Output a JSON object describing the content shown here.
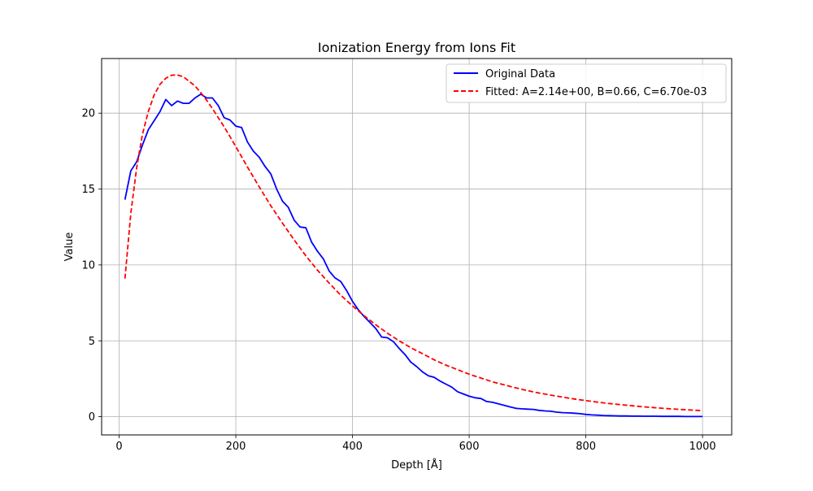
{
  "chart_data": {
    "type": "line",
    "title": "Ionization Energy from Ions Fit",
    "xlabel": "Depth [Å]",
    "ylabel": "Value",
    "xlim": [
      -30,
      1050
    ],
    "ylim": [
      -1.2,
      23.6
    ],
    "xticks": [
      0,
      200,
      400,
      600,
      800,
      1000
    ],
    "yticks": [
      0,
      5,
      10,
      15,
      20
    ],
    "grid": true,
    "legend_position": "top-right",
    "series": [
      {
        "name": "Original Data",
        "color": "#0000ff",
        "style": "solid",
        "x": [
          10,
          20,
          30,
          40,
          50,
          60,
          70,
          80,
          90,
          100,
          110,
          120,
          130,
          140,
          150,
          160,
          170,
          180,
          190,
          200,
          210,
          220,
          230,
          240,
          250,
          260,
          270,
          280,
          290,
          300,
          310,
          320,
          330,
          340,
          350,
          360,
          370,
          380,
          390,
          400,
          410,
          420,
          430,
          440,
          450,
          460,
          470,
          480,
          490,
          500,
          510,
          520,
          530,
          540,
          550,
          560,
          570,
          580,
          590,
          600,
          610,
          620,
          630,
          640,
          650,
          660,
          670,
          680,
          690,
          700,
          710,
          720,
          730,
          740,
          750,
          760,
          770,
          780,
          790,
          800,
          810,
          820,
          830,
          840,
          850,
          860,
          870,
          880,
          890,
          900,
          910,
          920,
          930,
          940,
          950,
          960,
          970,
          980,
          990,
          1000
        ],
        "y": [
          14.3,
          16.2,
          16.8,
          17.9,
          18.9,
          19.5,
          20.1,
          20.9,
          20.5,
          20.8,
          20.65,
          20.65,
          21.0,
          21.25,
          21.0,
          21.0,
          20.5,
          19.7,
          19.55,
          19.15,
          19.05,
          18.1,
          17.5,
          17.1,
          16.5,
          16.0,
          15.0,
          14.2,
          13.8,
          12.95,
          12.5,
          12.45,
          11.5,
          10.9,
          10.4,
          9.6,
          9.15,
          8.9,
          8.3,
          7.6,
          7.05,
          6.6,
          6.2,
          5.8,
          5.25,
          5.2,
          4.95,
          4.5,
          4.1,
          3.6,
          3.3,
          2.95,
          2.7,
          2.6,
          2.35,
          2.15,
          1.95,
          1.65,
          1.5,
          1.35,
          1.25,
          1.2,
          1.0,
          0.95,
          0.85,
          0.75,
          0.65,
          0.55,
          0.52,
          0.5,
          0.48,
          0.42,
          0.38,
          0.36,
          0.3,
          0.27,
          0.25,
          0.23,
          0.2,
          0.15,
          0.12,
          0.1,
          0.08,
          0.07,
          0.06,
          0.05,
          0.05,
          0.04,
          0.04,
          0.03,
          0.03,
          0.03,
          0.02,
          0.02,
          0.02,
          0.02,
          0.01,
          0.01,
          0.01,
          0.01
        ]
      },
      {
        "name": "Fitted: A=2.14e+00, B=0.66, C=6.70e-03",
        "color": "#ff0000",
        "style": "dashed",
        "x": [
          10,
          20,
          30,
          40,
          50,
          60,
          70,
          80,
          90,
          100,
          110,
          120,
          130,
          140,
          150,
          160,
          170,
          180,
          190,
          200,
          220,
          240,
          260,
          280,
          300,
          320,
          340,
          360,
          380,
          400,
          420,
          440,
          460,
          480,
          500,
          520,
          540,
          560,
          580,
          600,
          620,
          640,
          660,
          680,
          700,
          720,
          740,
          760,
          780,
          800,
          820,
          840,
          860,
          880,
          900,
          920,
          940,
          960,
          980,
          1000
        ],
        "y": [
          9.1,
          13.4,
          16.4,
          18.6,
          20.1,
          21.2,
          21.9,
          22.3,
          22.5,
          22.52,
          22.4,
          22.1,
          21.8,
          21.35,
          20.85,
          20.3,
          19.7,
          19.1,
          18.45,
          17.8,
          16.45,
          15.15,
          13.9,
          12.75,
          11.65,
          10.6,
          9.65,
          8.8,
          8.0,
          7.3,
          6.65,
          6.05,
          5.5,
          5.0,
          4.55,
          4.15,
          3.75,
          3.4,
          3.1,
          2.8,
          2.55,
          2.3,
          2.1,
          1.9,
          1.72,
          1.56,
          1.42,
          1.29,
          1.17,
          1.06,
          0.96,
          0.87,
          0.79,
          0.72,
          0.65,
          0.59,
          0.53,
          0.48,
          0.44,
          0.4
        ]
      }
    ]
  }
}
